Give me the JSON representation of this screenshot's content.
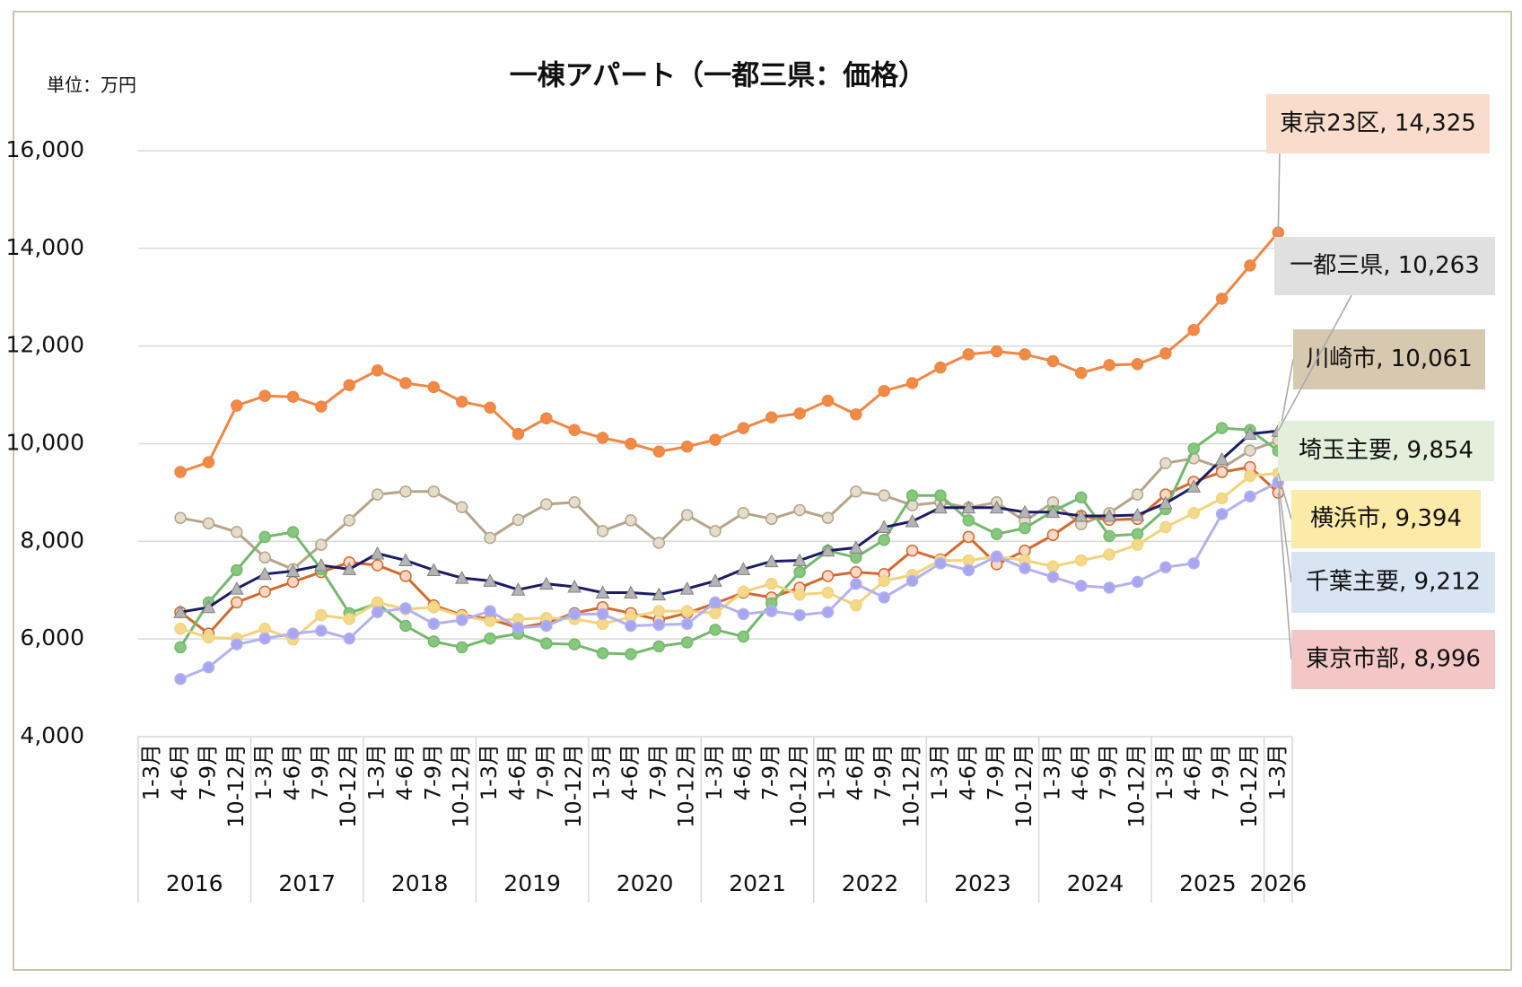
{
  "chart_data": {
    "type": "line",
    "title": "一棟アパート（一都三県：価格）",
    "unit_label": "単位：万円",
    "categories": [
      "1-3月",
      "4-6月",
      "7-9月",
      "10-12月",
      "1-3月",
      "4-6月",
      "7-9月",
      "10-12月",
      "1-3月",
      "4-6月",
      "7-9月",
      "10-12月",
      "1-3月",
      "4-6月",
      "7-9月",
      "10-12月",
      "1-3月",
      "4-6月",
      "7-9月",
      "10-12月",
      "1-3月",
      "4-6月",
      "7-9月",
      "10-12月",
      "1-3月",
      "4-6月",
      "7-9月",
      "10-12月",
      "1-3月",
      "4-6月",
      "7-9月",
      "10-12月",
      "1-3月",
      "4-6月",
      "7-9月",
      "10-12月",
      "1-3月",
      "4-6月",
      "7-9月",
      "10-12月",
      "1-3月"
    ],
    "x_groups": [
      "2016",
      "2017",
      "2018",
      "2019",
      "2020",
      "2021",
      "2022",
      "2023",
      "2024",
      "2025",
      "2026"
    ],
    "ylim": [
      4000,
      16000
    ],
    "yticks": [
      {
        "value": 4000,
        "label": "4,000"
      },
      {
        "value": 6000,
        "label": "6,000"
      },
      {
        "value": 8000,
        "label": "8,000"
      },
      {
        "value": 10000,
        "label": "10,000"
      },
      {
        "value": 12000,
        "label": "12,000"
      },
      {
        "value": 14000,
        "label": "14,000"
      },
      {
        "value": 16000,
        "label": "16,000"
      }
    ],
    "grid": true,
    "series": [
      {
        "name": "川崎市",
        "color": "#b5a58a",
        "marker": "circle",
        "marker_color": "#e6dccb",
        "label_color": "#d6c9b0",
        "values": [
          null,
          8480,
          8370,
          8190,
          7670,
          7430,
          7930,
          8430,
          8960,
          9020,
          9020,
          8700,
          8070,
          8440,
          8760,
          8800,
          8210,
          8430,
          7970,
          8540,
          8210,
          8580,
          8460,
          8640,
          8480,
          9020,
          8940,
          8740,
          8800,
          8690,
          8800,
          8410,
          8800,
          8350,
          8580,
          8960,
          9600,
          9700,
          9500,
          9860,
          10061
        ],
        "value_labels": [
          null,
          null,
          null,
          null,
          null,
          null,
          null,
          null,
          null,
          null,
          null,
          null,
          null,
          null,
          null,
          null,
          null,
          null,
          null,
          null,
          null,
          null,
          null,
          null,
          null,
          null,
          null,
          null,
          null,
          null,
          null,
          null,
          null,
          null,
          null,
          null,
          null,
          null,
          null,
          null,
          "川崎市, 10,061"
        ]
      },
      {
        "name": "東京市部",
        "color": "#d2692e",
        "marker": "circle",
        "marker_color": "#fbd9c6",
        "label_color": "#f4c7c7",
        "values": [
          null,
          6550,
          6110,
          6750,
          6970,
          7170,
          7370,
          7570,
          7510,
          7290,
          6690,
          6490,
          6410,
          6230,
          6330,
          6530,
          6650,
          6530,
          6390,
          6530,
          6730,
          6950,
          6850,
          7050,
          7290,
          7370,
          7330,
          7810,
          7630,
          8090,
          7530,
          7810,
          8130,
          8520,
          8440,
          8460,
          8960,
          9220,
          9420,
          9520,
          8996
        ],
        "value_labels": [
          null,
          null,
          null,
          null,
          null,
          null,
          null,
          null,
          null,
          null,
          null,
          null,
          null,
          null,
          null,
          null,
          null,
          null,
          null,
          null,
          null,
          null,
          null,
          null,
          null,
          null,
          null,
          null,
          null,
          null,
          null,
          null,
          null,
          null,
          null,
          null,
          null,
          null,
          null,
          null,
          "東京市部, 8,996"
        ]
      },
      {
        "name": "埼玉主要",
        "color": "#75b86d",
        "marker": "circle",
        "marker_color": "#86c97e",
        "label_color": "#e2efda",
        "values": [
          null,
          5830,
          6750,
          7410,
          8090,
          8190,
          7430,
          6530,
          6730,
          6270,
          5950,
          5830,
          6010,
          6110,
          5910,
          5890,
          5710,
          5690,
          5850,
          5930,
          6190,
          6050,
          6730,
          7370,
          7810,
          7670,
          8030,
          8940,
          8940,
          8430,
          8150,
          8270,
          8620,
          8900,
          8110,
          8150,
          8660,
          9900,
          10320,
          10280,
          9854
        ],
        "value_labels": [
          null,
          null,
          null,
          null,
          null,
          null,
          null,
          null,
          null,
          null,
          null,
          null,
          null,
          null,
          null,
          null,
          null,
          null,
          null,
          null,
          null,
          null,
          null,
          null,
          null,
          null,
          null,
          null,
          null,
          null,
          null,
          null,
          null,
          null,
          null,
          null,
          null,
          null,
          null,
          null,
          "埼玉主要, 9,854"
        ]
      },
      {
        "name": "横浜市",
        "color": "#f2d27c",
        "marker": "circle",
        "marker_color": "#f5d98a",
        "label_color": "#fbeaa8",
        "values": [
          null,
          6210,
          6030,
          6010,
          6210,
          5990,
          6490,
          6410,
          6750,
          6610,
          6650,
          6470,
          6370,
          6410,
          6430,
          6410,
          6310,
          6450,
          6570,
          6570,
          6530,
          6970,
          7130,
          6910,
          6950,
          6690,
          7190,
          7310,
          7610,
          7610,
          7690,
          7610,
          7490,
          7610,
          7730,
          7930,
          8290,
          8580,
          8880,
          9340,
          9394
        ],
        "value_labels": [
          null,
          null,
          null,
          null,
          null,
          null,
          null,
          null,
          null,
          null,
          null,
          null,
          null,
          null,
          null,
          null,
          null,
          null,
          null,
          null,
          null,
          null,
          null,
          null,
          null,
          null,
          null,
          null,
          null,
          null,
          null,
          null,
          null,
          null,
          null,
          null,
          null,
          null,
          null,
          null,
          "横浜市, 9,394"
        ]
      },
      {
        "name": "千葉主要",
        "color": "#b3b1ef",
        "marker": "circle",
        "marker_color": "#a8a6f0",
        "label_color": "#d9e4f3",
        "values": [
          null,
          5180,
          5420,
          5890,
          6010,
          6110,
          6170,
          6010,
          6550,
          6630,
          6310,
          6390,
          6570,
          6230,
          6270,
          6510,
          6510,
          6270,
          6290,
          6310,
          6750,
          6510,
          6570,
          6490,
          6550,
          7130,
          6850,
          7190,
          7550,
          7410,
          7690,
          7450,
          7270,
          7090,
          7050,
          7170,
          7470,
          7550,
          8560,
          8920,
          9212
        ],
        "value_labels": [
          null,
          null,
          null,
          null,
          null,
          null,
          null,
          null,
          null,
          null,
          null,
          null,
          null,
          null,
          null,
          null,
          null,
          null,
          null,
          null,
          null,
          null,
          null,
          null,
          null,
          null,
          null,
          null,
          null,
          null,
          null,
          null,
          null,
          null,
          null,
          null,
          null,
          null,
          null,
          null,
          "千葉主要, 9,212"
        ]
      },
      {
        "name": "一都三県",
        "color": "#1c1c66",
        "marker": "triangle",
        "marker_color": "#b4b4b4",
        "label_color": "#e0e0e0",
        "values": [
          null,
          6550,
          6650,
          7030,
          7330,
          7390,
          7510,
          7430,
          7750,
          7610,
          7410,
          7250,
          7190,
          7010,
          7130,
          7070,
          6950,
          6950,
          6910,
          7030,
          7190,
          7430,
          7590,
          7610,
          7810,
          7870,
          8290,
          8410,
          8690,
          8690,
          8690,
          8600,
          8600,
          8520,
          8520,
          8540,
          8780,
          9120,
          9680,
          10200,
          10263
        ],
        "value_labels": [
          null,
          null,
          null,
          null,
          null,
          null,
          null,
          null,
          null,
          null,
          null,
          null,
          null,
          null,
          null,
          null,
          null,
          null,
          null,
          null,
          null,
          null,
          null,
          null,
          null,
          null,
          null,
          null,
          null,
          null,
          null,
          null,
          null,
          null,
          null,
          null,
          null,
          null,
          null,
          null,
          "一都三県, 10,263"
        ]
      },
      {
        "name": "東京23区",
        "color": "#ee8746",
        "marker": "circle",
        "marker_color": "#f08a44",
        "label_color": "#f9dccb",
        "values": [
          null,
          9420,
          9620,
          10780,
          10980,
          10960,
          10760,
          11200,
          11500,
          11240,
          11160,
          10860,
          10740,
          10200,
          10520,
          10280,
          10120,
          10000,
          9840,
          9940,
          10080,
          10320,
          10540,
          10620,
          10880,
          10600,
          11080,
          11240,
          11560,
          11830,
          11890,
          11830,
          11690,
          11450,
          11610,
          11630,
          11850,
          12330,
          12970,
          13650,
          14325
        ],
        "value_labels": [
          null,
          null,
          null,
          null,
          null,
          null,
          null,
          null,
          null,
          null,
          null,
          null,
          null,
          null,
          null,
          null,
          null,
          null,
          null,
          null,
          null,
          null,
          null,
          null,
          null,
          null,
          null,
          null,
          null,
          null,
          null,
          null,
          null,
          null,
          null,
          null,
          null,
          null,
          null,
          null,
          "東京23区, 14,325"
        ]
      }
    ]
  }
}
